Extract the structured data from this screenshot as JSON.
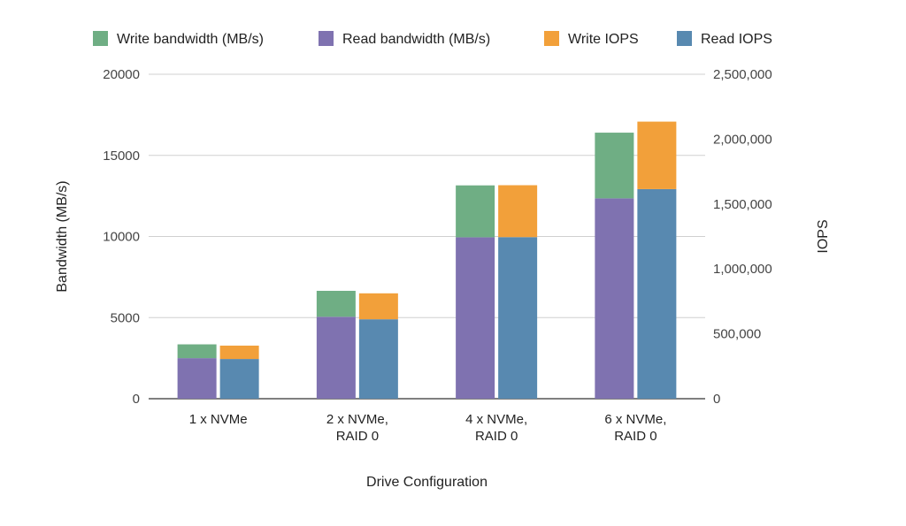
{
  "chart_data": {
    "type": "bar",
    "stacked": true,
    "grouped": true,
    "categories": [
      [
        "1 x NVMe"
      ],
      [
        "2 x NVMe,",
        "RAID 0"
      ],
      [
        "4 x NVMe,",
        "RAID 0"
      ],
      [
        "6 x NVMe,",
        "RAID 0"
      ]
    ],
    "xlabel": "Drive Configuration",
    "ylabel": "Bandwidth (MB/s)",
    "y2label": "IOPS",
    "ylim": [
      0,
      20000
    ],
    "y2lim": [
      0,
      2500000
    ],
    "yticks": [
      "0",
      "5000",
      "10000",
      "15000",
      "20000"
    ],
    "y2ticks": [
      "0",
      "500,000",
      "1,000,000",
      "1,500,000",
      "2,000,000",
      "2,500,000"
    ],
    "legend_position": "top",
    "grid": true,
    "legend": [
      {
        "name": "Write bandwidth (MB/s)",
        "color": "#6fae84"
      },
      {
        "name": "Read bandwidth (MB/s)",
        "color": "#7f72b0"
      },
      {
        "name": "Write IOPS",
        "color": "#f2a03a"
      },
      {
        "name": "Read IOPS",
        "color": "#5889b0"
      }
    ],
    "bandwidth_stack": {
      "axis": "left",
      "series": [
        {
          "name": "Read bandwidth (MB/s)",
          "color": "#7f72b0",
          "values": [
            2500,
            5050,
            9950,
            12350
          ]
        },
        {
          "name": "Write bandwidth (MB/s)",
          "color": "#6fae84",
          "values": [
            850,
            1600,
            3200,
            4050
          ]
        }
      ]
    },
    "iops_stack": {
      "axis": "right",
      "series": [
        {
          "name": "Read IOPS",
          "color": "#5889b0",
          "values": [
            306000,
            612000,
            1245000,
            1615000
          ]
        },
        {
          "name": "Write IOPS",
          "color": "#f2a03a",
          "values": [
            103000,
            200000,
            400000,
            520000
          ]
        }
      ]
    }
  }
}
